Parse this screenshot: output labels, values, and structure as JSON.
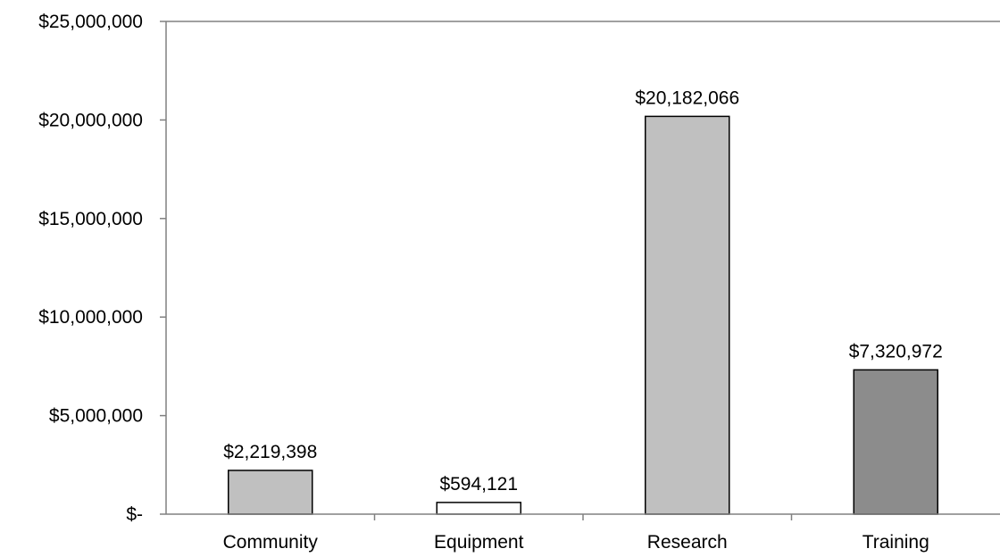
{
  "chart_data": {
    "type": "bar",
    "title": "",
    "xlabel": "",
    "ylabel": "",
    "categories": [
      "Community",
      "Equipment",
      "Research",
      "Training"
    ],
    "values": [
      2219398,
      594121,
      20182066,
      7320972
    ],
    "data_labels": [
      "$2,219,398",
      "$594,121",
      "$20,182,066",
      "$7,320,972"
    ],
    "bar_colors": [
      "#c0c0c0",
      "#ffffff",
      "#c0c0c0",
      "#8c8c8c"
    ],
    "ylim": [
      0,
      25000000
    ],
    "y_ticks": [
      0,
      5000000,
      10000000,
      15000000,
      20000000,
      25000000
    ],
    "y_tick_labels": [
      "$-",
      "$5,000,000",
      "$10,000,000",
      "$15,000,000",
      "$20,000,000",
      "$25,000,000"
    ],
    "grid": false,
    "legend": false
  }
}
